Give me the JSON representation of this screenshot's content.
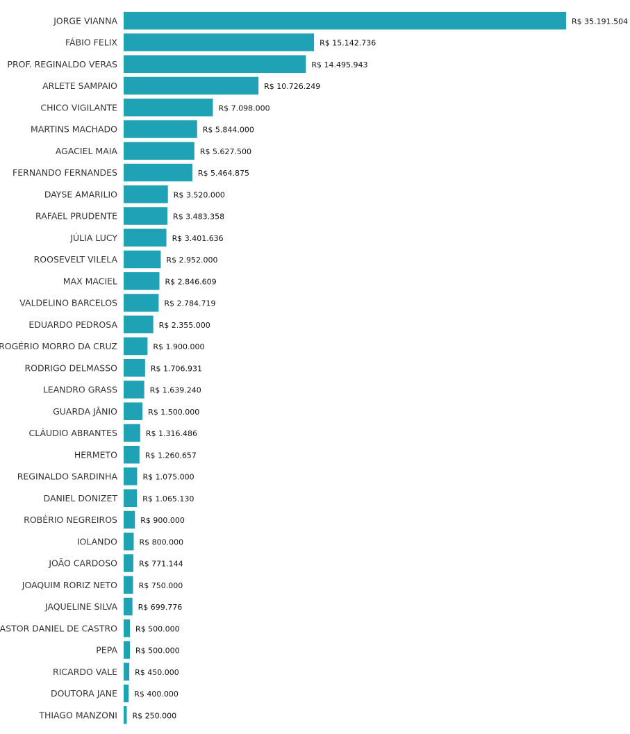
{
  "chart_data": {
    "type": "bar",
    "orientation": "horizontal",
    "bar_color": "#1fa1b6",
    "value_prefix": "R$ ",
    "categories": [
      "JORGE VIANNA",
      "FÁBIO FELIX",
      "PROF. REGINALDO VERAS",
      "ARLETE SAMPAIO",
      "CHICO VIGILANTE",
      "MARTINS MACHADO",
      "AGACIEL MAIA",
      "FERNANDO FERNANDES",
      "DAYSE AMARILIO",
      "RAFAEL PRUDENTE",
      "JÚLIA LUCY",
      "ROOSEVELT VILELA",
      "MAX MACIEL",
      "VALDELINO BARCELOS",
      "EDUARDO PEDROSA",
      "ROGÉRIO MORRO DA CRUZ",
      "RODRIGO DELMASSO",
      "LEANDRO GRASS",
      "GUARDA JÂNIO",
      "CLÁUDIO ABRANTES",
      "HERMETO",
      "REGINALDO SARDINHA",
      "DANIEL DONIZET",
      "ROBÉRIO NEGREIROS",
      "IOLANDO",
      "JOÃO CARDOSO",
      "JOAQUIM RORIZ NETO",
      "JAQUELINE SILVA",
      "PASTOR DANIEL DE CASTRO",
      "PEPA",
      "RICARDO VALE",
      "DOUTORA JANE",
      "THIAGO MANZONI"
    ],
    "values": [
      35191504,
      15142736,
      14495943,
      10726249,
      7098000,
      5844000,
      5627500,
      5464875,
      3520000,
      3483358,
      3401636,
      2952000,
      2846609,
      2784719,
      2355000,
      1900000,
      1706931,
      1639240,
      1500000,
      1316486,
      1260657,
      1075000,
      1065130,
      900000,
      800000,
      771144,
      750000,
      699776,
      500000,
      500000,
      450000,
      400000,
      250000
    ],
    "value_labels": [
      "R$ 35.191.504",
      "R$ 15.142.736",
      "R$ 14.495.943",
      "R$ 10.726.249",
      "R$ 7.098.000",
      "R$ 5.844.000",
      "R$ 5.627.500",
      "R$ 5.464.875",
      "R$ 3.520.000",
      "R$ 3.483.358",
      "R$ 3.401.636",
      "R$ 2.952.000",
      "R$ 2.846.609",
      "R$ 2.784.719",
      "R$ 2.355.000",
      "R$ 1.900.000",
      "R$ 1.706.931",
      "R$ 1.639.240",
      "R$ 1.500.000",
      "R$ 1.316.486",
      "R$ 1.260.657",
      "R$ 1.075.000",
      "R$ 1.065.130",
      "R$ 900.000",
      "R$ 800.000",
      "R$ 771.144",
      "R$ 750.000",
      "R$ 699.776",
      "R$ 500.000",
      "R$ 500.000",
      "R$ 450.000",
      "R$ 400.000",
      "R$ 250.000"
    ],
    "xlim": [
      0,
      35191504
    ],
    "title": "",
    "xlabel": "",
    "ylabel": "",
    "grid": false,
    "legend": "none"
  }
}
